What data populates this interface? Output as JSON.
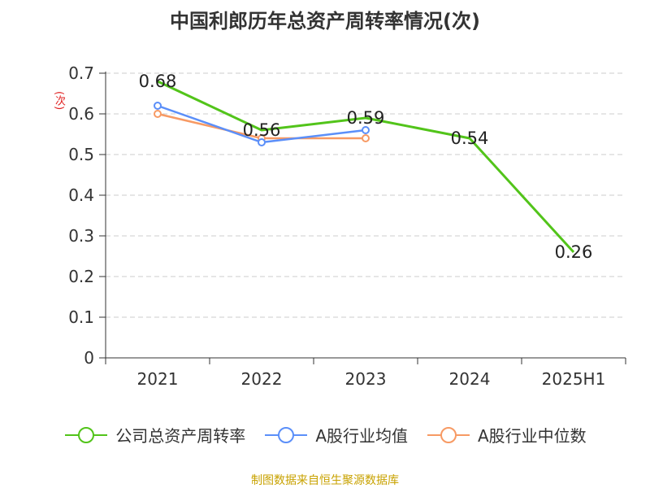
{
  "title": "中国利郎历年总资产周转率情况(次)",
  "source": "制图数据来自恒生聚源数据库",
  "chart_data": {
    "type": "line",
    "title": "中国利郎历年总资产周转率情况(次)",
    "ylabel": "(次)",
    "xlabel": "",
    "categories": [
      "2021",
      "2022",
      "2023",
      "2024",
      "2025H1"
    ],
    "ylim": [
      0,
      0.7
    ],
    "yticks": [
      0,
      0.1,
      0.2,
      0.3,
      0.4,
      0.5,
      0.6,
      0.7
    ],
    "ytick_labels": [
      "0",
      "0.1",
      "0.2",
      "0.3",
      "0.4",
      "0.5",
      "0.6",
      "0.7"
    ],
    "grid": true,
    "legend_position": "bottom",
    "series": [
      {
        "name": "公司总资产周转率",
        "color": "#52c41a",
        "values": [
          0.68,
          0.56,
          0.59,
          0.54,
          0.26
        ],
        "data_labels": [
          "0.68",
          "0.56",
          "0.59",
          "0.54",
          "0.26"
        ]
      },
      {
        "name": "A股行业均值",
        "color": "#5b8ff9",
        "values": [
          0.62,
          0.53,
          0.56,
          null,
          null
        ]
      },
      {
        "name": "A股行业中位数",
        "color": "#f79a64",
        "values": [
          0.6,
          0.54,
          0.54,
          null,
          null
        ]
      }
    ]
  }
}
